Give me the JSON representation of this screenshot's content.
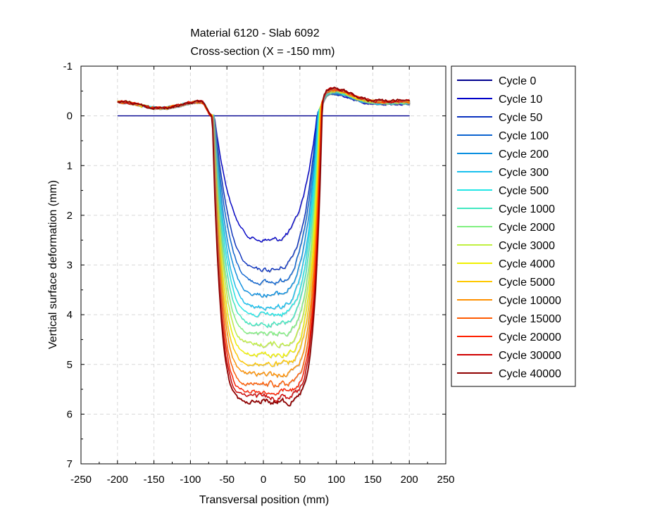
{
  "chart_data": {
    "type": "line",
    "title": "Material 6120 - Slab 6092",
    "subtitle": "Cross-section (X = -150 mm)",
    "xlabel": "Transversal position (mm)",
    "ylabel": "Vertical surface deformation (mm)",
    "xlim": [
      -250,
      250
    ],
    "ylim": [
      -1,
      7
    ],
    "y_inverted": true,
    "grid": true,
    "legend_placement": "outside-right",
    "xticks": [
      "-250",
      "-200",
      "-150",
      "-100",
      "-50",
      "0",
      "50",
      "100",
      "150",
      "200",
      "250"
    ],
    "yticks": [
      "-1",
      "0",
      "1",
      "2",
      "3",
      "4",
      "5",
      "6",
      "7"
    ],
    "series": [
      {
        "name": "Cycle 0",
        "color": "#00008f",
        "max_depth": 0.0
      },
      {
        "name": "Cycle 10",
        "color": "#0000c8",
        "max_depth": 2.5
      },
      {
        "name": "Cycle 50",
        "color": "#0a32c0",
        "max_depth": 3.1
      },
      {
        "name": "Cycle 100",
        "color": "#0b63d0",
        "max_depth": 3.35
      },
      {
        "name": "Cycle 200",
        "color": "#0a8fe0",
        "max_depth": 3.6
      },
      {
        "name": "Cycle 300",
        "color": "#18c0ee",
        "max_depth": 3.85
      },
      {
        "name": "Cycle 500",
        "color": "#22e6e6",
        "max_depth": 4.0
      },
      {
        "name": "Cycle 1000",
        "color": "#40e8c0",
        "max_depth": 4.2
      },
      {
        "name": "Cycle 2000",
        "color": "#80f080",
        "max_depth": 4.4
      },
      {
        "name": "Cycle 3000",
        "color": "#c0f040",
        "max_depth": 4.6
      },
      {
        "name": "Cycle 4000",
        "color": "#f0f000",
        "max_depth": 4.8
      },
      {
        "name": "Cycle 5000",
        "color": "#ffc800",
        "max_depth": 5.0
      },
      {
        "name": "Cycle 10000",
        "color": "#ff9000",
        "max_depth": 5.2
      },
      {
        "name": "Cycle 15000",
        "color": "#ff5a00",
        "max_depth": 5.4
      },
      {
        "name": "Cycle 20000",
        "color": "#ff2000",
        "max_depth": 5.55
      },
      {
        "name": "Cycle 30000",
        "color": "#d00000",
        "max_depth": 5.65
      },
      {
        "name": "Cycle 40000",
        "color": "#900000",
        "max_depth": 5.75
      }
    ]
  }
}
